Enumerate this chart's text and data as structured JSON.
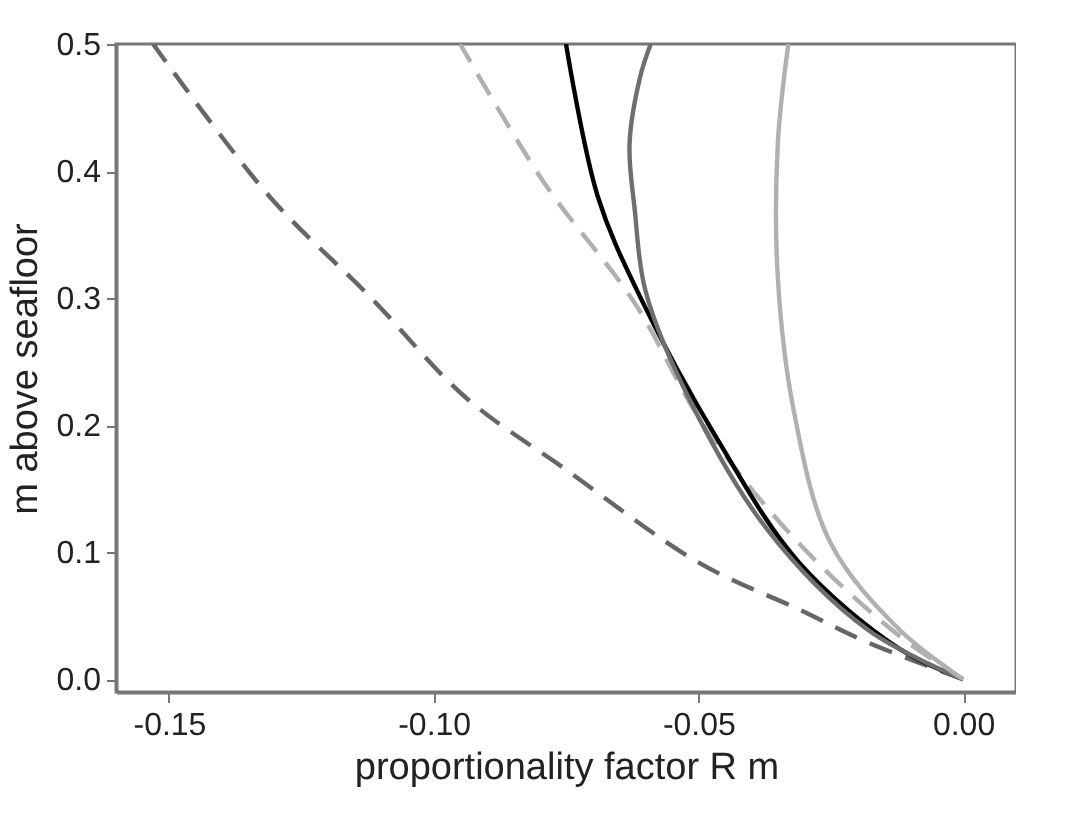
{
  "chart_data": {
    "type": "line",
    "xlabel": "proportionality factor R  m",
    "ylabel": "m above seafloor",
    "xlim": [
      -0.16,
      0.01
    ],
    "ylim": [
      -0.01,
      0.5
    ],
    "xticks": [
      {
        "value": -0.15,
        "label": "-0.15"
      },
      {
        "value": -0.1,
        "label": "-0.10"
      },
      {
        "value": -0.05,
        "label": "-0.05"
      },
      {
        "value": 0,
        "label": "0.00"
      }
    ],
    "yticks": [
      {
        "value": 0,
        "label": "0.0"
      },
      {
        "value": 0.1,
        "label": "0.1"
      },
      {
        "value": 0.2,
        "label": "0.2"
      },
      {
        "value": 0.3,
        "label": "0.3"
      },
      {
        "value": 0.4,
        "label": "0.4"
      },
      {
        "value": 0.5,
        "label": "0.5"
      }
    ],
    "grid": false,
    "marker": "none",
    "series": [
      {
        "color": "#666666",
        "line_style": "dashed",
        "x": [
          0,
          -0.018,
          -0.031,
          -0.05,
          -0.075,
          -0.094,
          -0.112,
          -0.131,
          -0.153
        ],
        "values": [
          0,
          0.029,
          0.055,
          0.092,
          0.165,
          0.222,
          0.301,
          0.38,
          0.5
        ]
      },
      {
        "color": "#b0b0b0",
        "line_style": "dashed",
        "x": [
          0,
          -0.012,
          -0.031,
          -0.049,
          -0.062,
          -0.079,
          -0.095
        ],
        "values": [
          0,
          0.034,
          0.107,
          0.2,
          0.296,
          0.39,
          0.5
        ]
      },
      {
        "color": "#000000",
        "line_style": "solid",
        "x": [
          0,
          -0.012,
          -0.031,
          -0.046,
          -0.061,
          -0.069,
          -0.075
        ],
        "values": [
          0,
          0.024,
          0.092,
          0.186,
          0.301,
          0.38,
          0.5
        ]
      },
      {
        "color": "#6e6e6e",
        "line_style": "solid",
        "x": [
          0,
          -0.018,
          -0.037,
          -0.052,
          -0.06,
          -0.062,
          -0.063,
          -0.061,
          -0.059
        ],
        "values": [
          0,
          0.039,
          0.118,
          0.223,
          0.306,
          0.369,
          0.421,
          0.474,
          0.5
        ]
      },
      {
        "color": "#b0b0b0",
        "line_style": "solid",
        "x": [
          0,
          -0.012,
          -0.025,
          -0.032,
          -0.035,
          -0.035,
          -0.033
        ],
        "values": [
          0,
          0.039,
          0.107,
          0.212,
          0.317,
          0.421,
          0.5
        ]
      }
    ]
  }
}
